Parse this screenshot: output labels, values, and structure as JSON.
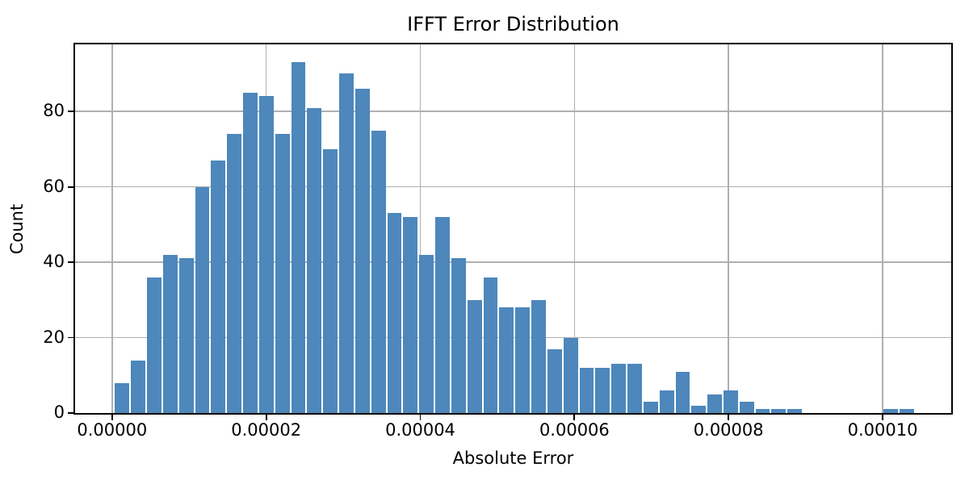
{
  "figure": {
    "background_color": "#ffffff",
    "text_color": "#000000"
  },
  "chart_data": {
    "type": "bar",
    "subtype": "histogram",
    "title": "IFFT Error Distribution",
    "xlabel": "Absolute Error",
    "ylabel": "Count",
    "bar_color": "#4d87bb",
    "bar_edge_color": "#ffffff",
    "grid_color": "#b0b0b0",
    "spine_color": "#000000",
    "grid": true,
    "legend": null,
    "bin_start": 2.8e-07,
    "bin_width": 2.078e-06,
    "counts": [
      8,
      14,
      36,
      42,
      41,
      60,
      67,
      74,
      85,
      84,
      74,
      93,
      81,
      70,
      90,
      86,
      75,
      53,
      52,
      42,
      52,
      41,
      30,
      36,
      28,
      28,
      30,
      17,
      20,
      12,
      12,
      13,
      13,
      3,
      6,
      11,
      2,
      5,
      6,
      3,
      1,
      1,
      1,
      0,
      0,
      0,
      0,
      0,
      1,
      1
    ],
    "xlim": [
      -4.8e-06,
      0.0001089
    ],
    "ylim": [
      0,
      97.8
    ],
    "x_ticks": [
      {
        "value": 0.0,
        "label": "0.00000"
      },
      {
        "value": 2e-05,
        "label": "0.00002"
      },
      {
        "value": 4e-05,
        "label": "0.00004"
      },
      {
        "value": 6e-05,
        "label": "0.00006"
      },
      {
        "value": 8e-05,
        "label": "0.00008"
      },
      {
        "value": 0.0001,
        "label": "0.00010"
      }
    ],
    "y_ticks": [
      {
        "value": 0,
        "label": "0"
      },
      {
        "value": 20,
        "label": "20"
      },
      {
        "value": 40,
        "label": "40"
      },
      {
        "value": 60,
        "label": "60"
      },
      {
        "value": 80,
        "label": "80"
      }
    ]
  }
}
